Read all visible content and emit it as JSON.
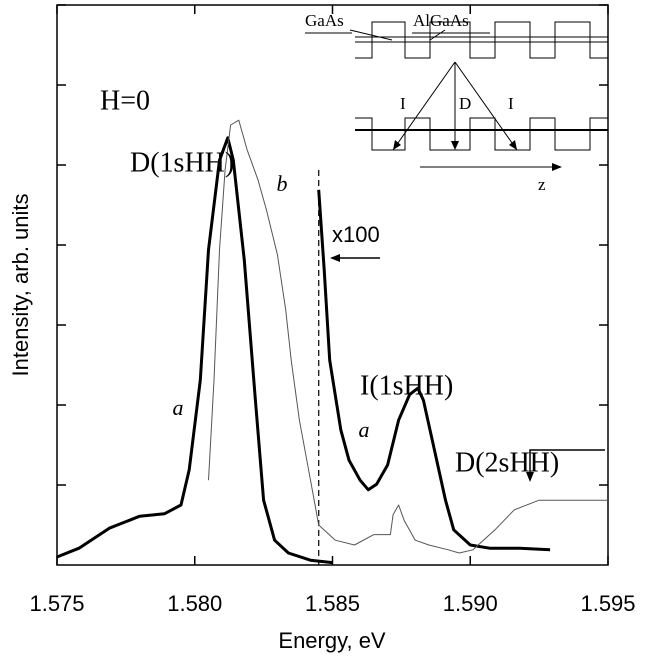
{
  "chart_data": {
    "type": "line",
    "xlabel": "Energy, eV",
    "ylabel": "Intensity, arb. units",
    "xlim": [
      1.575,
      1.595
    ],
    "xticks": [
      {
        "value": 1.575,
        "label": "1.575"
      },
      {
        "value": 1.58,
        "label": "1.580"
      },
      {
        "value": 1.585,
        "label": "1.585"
      },
      {
        "value": 1.59,
        "label": "1.590"
      },
      {
        "value": 1.595,
        "label": "1.595"
      }
    ],
    "ylim": [
      0,
      7
    ],
    "yticks": [
      1,
      2,
      3,
      4,
      5,
      6,
      7
    ],
    "marker_line": 1.5845,
    "series": [
      {
        "color": "#000000",
        "width": 3,
        "x": [
          1.575,
          1.5758,
          1.5769,
          1.578,
          1.5789,
          1.5795,
          1.5798,
          1.5802,
          1.5805,
          1.5809,
          1.5812,
          1.5814,
          1.5818,
          1.5822,
          1.5825,
          1.5829,
          1.5834,
          1.5842,
          1.585
        ],
        "y": [
          0.1,
          0.21,
          0.46,
          0.61,
          0.64,
          0.75,
          1.19,
          2.31,
          3.94,
          5.06,
          5.34,
          5.06,
          3.81,
          2.06,
          0.81,
          0.31,
          0.15,
          0.06,
          0.03
        ]
      },
      {
        "color": "#000000",
        "width": 3,
        "x": [
          1.5845,
          1.5847,
          1.5849,
          1.5853,
          1.5856,
          1.586,
          1.5863,
          1.5866,
          1.587,
          1.5874,
          1.5878,
          1.5881,
          1.5883,
          1.5887,
          1.5891,
          1.5894,
          1.59,
          1.5907,
          1.5918,
          1.5929
        ],
        "y": [
          4.69,
          3.69,
          2.56,
          1.69,
          1.31,
          1.06,
          0.94,
          1.01,
          1.25,
          1.81,
          2.13,
          2.21,
          2.06,
          1.44,
          0.81,
          0.44,
          0.25,
          0.21,
          0.21,
          0.19
        ]
      },
      {
        "color": "#555555",
        "width": 1,
        "x": [
          1.5805,
          1.5807,
          1.5809,
          1.5811,
          1.5813,
          1.5816,
          1.5819,
          1.5823,
          1.5826,
          1.583,
          1.5833,
          1.5835,
          1.5838,
          1.5842,
          1.5845,
          1.5851,
          1.5858,
          1.5865,
          1.5871,
          1.5872,
          1.5874,
          1.5876,
          1.588,
          1.5885,
          1.5892,
          1.5896,
          1.5901,
          1.5909,
          1.5916,
          1.5925,
          1.5936,
          1.595
        ],
        "y": [
          1.06,
          2.31,
          3.94,
          4.94,
          5.5,
          5.56,
          5.19,
          4.81,
          4.44,
          3.88,
          3.19,
          2.56,
          1.81,
          1.06,
          0.5,
          0.31,
          0.25,
          0.38,
          0.38,
          0.63,
          0.75,
          0.56,
          0.31,
          0.25,
          0.19,
          0.15,
          0.19,
          0.44,
          0.69,
          0.81,
          0.81,
          0.81
        ]
      }
    ],
    "annotations": [
      "H=0",
      "D(1sHH)",
      "b",
      "a",
      "x100",
      "I(1sHH)",
      "a",
      "D(2sHH)"
    ]
  },
  "inset": {
    "labels": [
      "GaAs",
      "AlGaAs",
      "I",
      "D",
      "I",
      "z"
    ]
  }
}
